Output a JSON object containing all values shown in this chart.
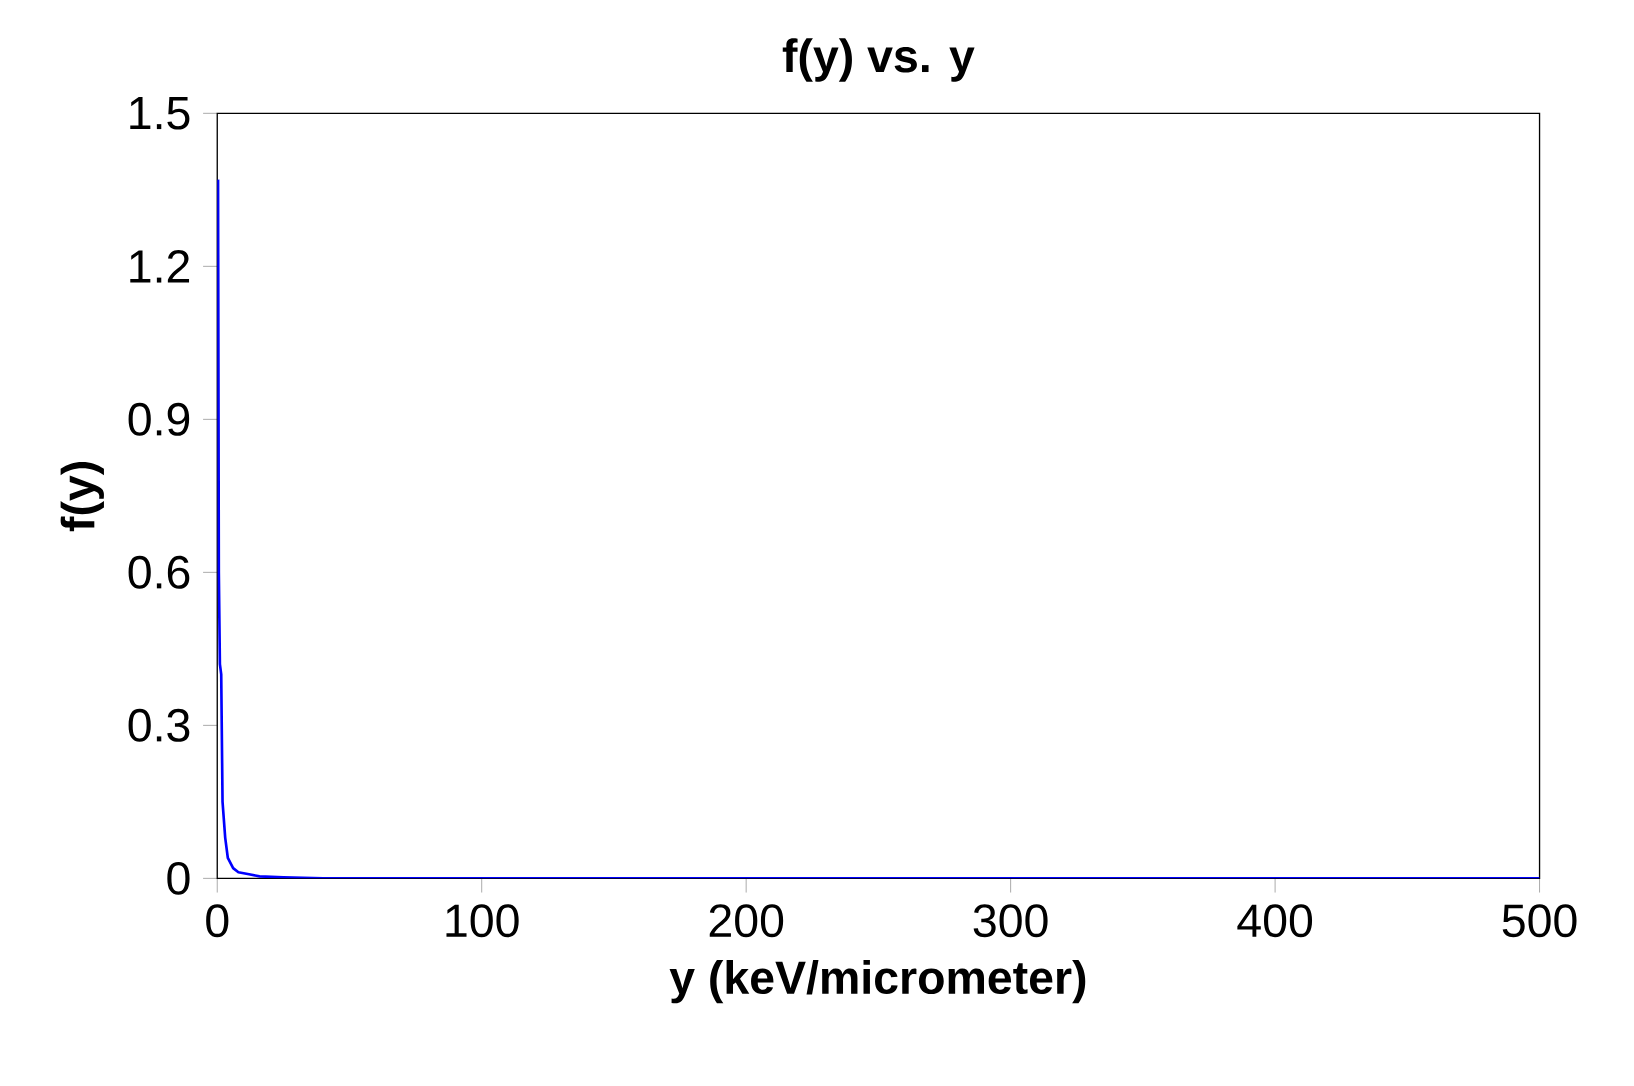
{
  "chart_data": {
    "type": "line",
    "title": "f(y) vs. y",
    "xlabel": "y (keV/micrometer)",
    "ylabel": "f(y)",
    "xlim": [
      0,
      500
    ],
    "ylim": [
      0,
      1.5
    ],
    "xticks": [
      0,
      100,
      200,
      300,
      400,
      500
    ],
    "yticks": [
      0,
      0.3,
      0.6,
      0.9,
      1.2,
      1.5
    ],
    "grid": false,
    "marker": "none",
    "line_style": "solid",
    "series": [
      {
        "color": "#0000ff",
        "x": [
          0.3,
          0.6,
          1,
          1.5,
          2,
          3,
          4,
          6,
          8,
          12,
          16,
          25,
          40,
          100,
          500
        ],
        "values": [
          1.37,
          0.6,
          0.42,
          0.4,
          0.15,
          0.08,
          0.04,
          0.02,
          0.012,
          0.008,
          0.004,
          0.002,
          0,
          0,
          0
        ]
      }
    ]
  }
}
